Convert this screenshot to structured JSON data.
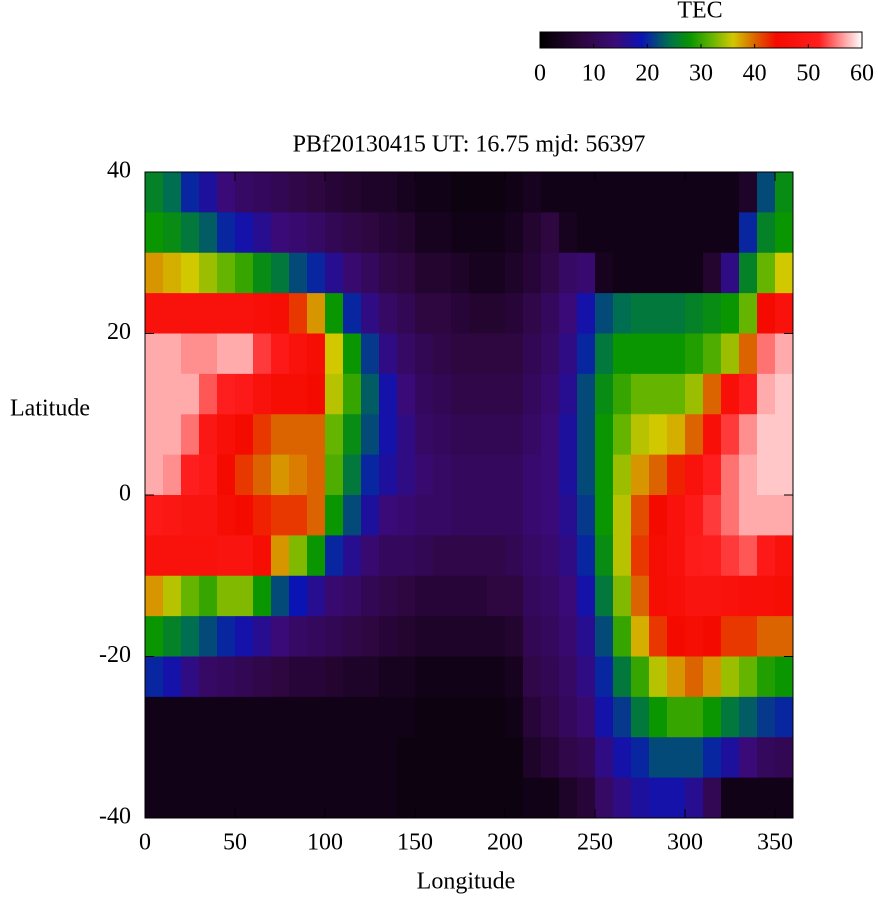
{
  "chart_data": {
    "type": "heatmap",
    "title": "PBf20130415  UT: 16.75  mjd: 56397",
    "xlabel": "Longitude",
    "ylabel": "Latitude",
    "colorbar_title": "TEC",
    "xlim": [
      0,
      360
    ],
    "ylim": [
      -40,
      40
    ],
    "xticks": [
      0,
      50,
      100,
      150,
      200,
      250,
      300,
      350
    ],
    "yticks": [
      -40,
      -20,
      0,
      20,
      40
    ],
    "zlim": [
      0,
      60
    ],
    "zticks": [
      0,
      10,
      20,
      30,
      40,
      50,
      60
    ],
    "colorscale": [
      [
        0,
        "#000000"
      ],
      [
        8,
        "#2e0640"
      ],
      [
        14,
        "#3a0a78"
      ],
      [
        19,
        "#0a14b4"
      ],
      [
        24,
        "#006e50"
      ],
      [
        28,
        "#0a9600"
      ],
      [
        32,
        "#64b400"
      ],
      [
        36,
        "#d2c800"
      ],
      [
        40,
        "#dc6400"
      ],
      [
        44,
        "#f50a00"
      ],
      [
        52,
        "#ff1e1e"
      ],
      [
        60,
        "#ffffff"
      ]
    ],
    "x": [
      5,
      15,
      25,
      35,
      45,
      55,
      65,
      75,
      85,
      95,
      105,
      115,
      125,
      135,
      145,
      155,
      165,
      175,
      185,
      195,
      205,
      215,
      225,
      235,
      245,
      255,
      265,
      275,
      285,
      295,
      305,
      315,
      325,
      335,
      345,
      355
    ],
    "y": [
      37.5,
      32.5,
      27.5,
      22.5,
      17.5,
      12.5,
      7.5,
      2.5,
      -2.5,
      -7.5,
      -12.5,
      -17.5,
      -22.5,
      -27.5,
      -32.5,
      -37.5
    ],
    "z": [
      [
        26,
        28,
        38,
        47,
        57,
        57,
        57,
        57,
        50,
        47,
        38,
        28,
        20,
        3,
        3,
        3
      ],
      [
        24,
        27,
        37,
        47,
        57,
        57,
        57,
        56,
        49,
        47,
        35,
        26,
        18,
        3,
        3,
        3
      ],
      [
        20,
        25,
        36,
        47,
        56,
        57,
        55,
        52,
        48,
        47,
        32,
        24,
        15,
        3,
        3,
        3
      ],
      [
        17,
        23,
        34,
        47,
        56,
        54,
        49,
        50,
        48,
        47,
        30,
        22,
        12,
        3,
        3,
        3
      ],
      [
        14,
        20,
        32,
        47,
        57,
        52,
        46,
        44,
        45,
        48,
        33,
        20,
        11,
        3,
        3,
        3
      ],
      [
        12,
        18,
        30,
        47,
        57,
        50,
        44,
        42,
        44,
        48,
        33,
        18,
        10,
        3,
        3,
        3
      ],
      [
        11,
        16,
        27,
        46,
        53,
        47,
        42,
        40,
        43,
        45,
        28,
        16,
        9,
        3,
        3,
        3
      ],
      [
        10,
        14,
        25,
        45,
        50,
        45,
        40,
        38,
        42,
        38,
        22,
        14,
        8,
        3,
        3,
        3
      ],
      [
        9,
        13,
        22,
        42,
        47,
        45,
        40,
        39,
        42,
        33,
        19,
        12,
        7,
        3,
        3,
        3
      ],
      [
        8,
        12,
        20,
        38,
        45,
        44,
        40,
        40,
        40,
        28,
        16,
        11,
        7,
        3,
        3,
        3
      ],
      [
        7,
        10,
        16,
        28,
        36,
        35,
        32,
        31,
        28,
        20,
        13,
        10,
        6,
        3,
        3,
        3
      ],
      [
        6,
        9,
        13,
        20,
        28,
        30,
        27,
        25,
        22,
        16,
        12,
        9,
        5,
        3,
        3,
        3
      ],
      [
        5,
        8,
        11,
        15,
        21,
        23,
        22,
        20,
        17,
        13,
        10,
        8,
        5,
        3,
        3,
        3
      ],
      [
        5,
        7,
        9,
        12,
        15,
        18,
        18,
        17,
        14,
        11,
        9,
        7,
        4,
        3,
        3,
        3
      ],
      [
        4,
        6,
        8,
        10,
        12,
        14,
        15,
        15,
        13,
        11,
        8,
        6,
        4,
        3,
        2,
        2
      ],
      [
        3,
        4,
        6,
        8,
        10,
        11,
        12,
        13,
        12,
        10,
        7,
        5,
        3,
        2,
        2,
        2
      ],
      [
        3,
        4,
        6,
        8,
        9,
        10,
        11,
        12,
        12,
        9,
        7,
        5,
        3,
        2,
        2,
        2
      ],
      [
        2,
        3,
        5,
        7,
        8,
        9,
        10,
        11,
        11,
        9,
        7,
        5,
        3,
        2,
        2,
        2
      ],
      [
        2,
        3,
        4,
        6,
        8,
        9,
        10,
        11,
        11,
        9,
        7,
        5,
        3,
        2,
        2,
        2
      ],
      [
        2,
        3,
        4,
        6,
        8,
        9,
        10,
        11,
        11,
        9,
        8,
        5,
        3,
        2,
        2,
        2
      ],
      [
        3,
        4,
        5,
        7,
        8,
        9,
        10,
        11,
        11,
        10,
        8,
        6,
        4,
        3,
        2,
        2
      ],
      [
        4,
        6,
        7,
        9,
        10,
        11,
        12,
        13,
        13,
        12,
        11,
        10,
        9,
        7,
        5,
        3
      ],
      [
        3,
        8,
        9,
        11,
        12,
        13,
        14,
        14,
        14,
        13,
        12,
        11,
        10,
        9,
        7,
        3
      ],
      [
        3,
        4,
        12,
        14,
        15,
        16,
        17,
        17,
        16,
        15,
        14,
        13,
        12,
        11,
        9,
        5
      ],
      [
        3,
        3,
        13,
        18,
        20,
        22,
        22,
        22,
        21,
        20,
        18,
        16,
        15,
        13,
        10,
        7
      ],
      [
        3,
        3,
        4,
        22,
        25,
        27,
        28,
        28,
        28,
        27,
        25,
        22,
        20,
        18,
        15,
        12
      ],
      [
        3,
        3,
        3,
        24,
        28,
        30,
        32,
        34,
        35,
        35,
        33,
        30,
        25,
        21,
        18,
        15
      ],
      [
        3,
        3,
        3,
        25,
        28,
        32,
        35,
        38,
        41,
        42,
        40,
        37,
        30,
        25,
        20,
        17
      ],
      [
        3,
        3,
        3,
        25,
        28,
        32,
        36,
        40,
        44,
        45,
        45,
        42,
        35,
        28,
        22,
        18
      ],
      [
        3,
        3,
        3,
        25,
        28,
        32,
        37,
        43,
        47,
        47,
        46,
        44,
        38,
        30,
        22,
        18
      ],
      [
        3,
        3,
        3,
        26,
        29,
        34,
        40,
        47,
        50,
        51,
        48,
        45,
        40,
        30,
        22,
        16
      ],
      [
        3,
        3,
        6,
        27,
        31,
        40,
        46,
        52,
        53,
        52,
        48,
        44,
        38,
        28,
        20,
        10
      ],
      [
        3,
        3,
        15,
        28,
        34,
        46,
        53,
        55,
        55,
        53,
        47,
        42,
        34,
        25,
        17,
        3
      ],
      [
        5,
        20,
        26,
        32,
        40,
        52,
        56,
        57,
        57,
        54,
        46,
        42,
        32,
        23,
        14,
        3
      ],
      [
        22,
        26,
        32,
        44,
        55,
        57,
        58,
        58,
        57,
        50,
        46,
        40,
        29,
        21,
        11,
        3
      ],
      [
        27,
        28,
        36,
        47,
        57,
        58,
        58,
        58,
        57,
        47,
        45,
        40,
        28,
        20,
        10,
        3
      ]
    ]
  }
}
